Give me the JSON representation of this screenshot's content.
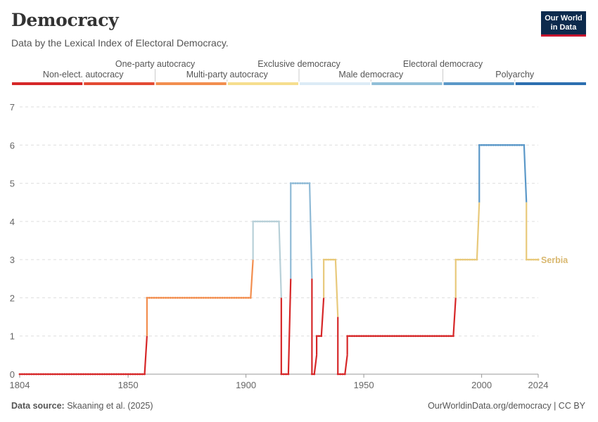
{
  "header": {
    "title": "Democracy",
    "subtitle": "Data by the Lexical Index of Electoral Democracy.",
    "logo_line1": "Our World",
    "logo_line2": "in Data"
  },
  "footer": {
    "source_label": "Data source:",
    "source_value": "Skaaning et al. (2025)",
    "url": "OurWorldinData.org/democracy | CC BY"
  },
  "legend": [
    {
      "label": "Non-elect. autocracy",
      "color": "#d62728"
    },
    {
      "label": "One-party autocracy",
      "color": "#e34a33"
    },
    {
      "label": "Multi-party autocracy",
      "color": "#f28e4f"
    },
    {
      "label": "Exclusive democracy",
      "color": "#f6de8e"
    },
    {
      "label": "Male democracy",
      "color": "#dcebf6"
    },
    {
      "label": "Electoral democracy",
      "color": "#91bfd8"
    },
    {
      "label": "Polyarchy",
      "color": "#5b98c8"
    },
    {
      "label": "",
      "color": "#2c6fb0"
    }
  ],
  "chart_data": {
    "type": "line",
    "title": "Democracy",
    "xlabel": "",
    "ylabel": "",
    "xlim": [
      1804,
      2024
    ],
    "ylim": [
      0,
      7
    ],
    "x_ticks": [
      1804,
      1850,
      1900,
      1950,
      2000,
      2024
    ],
    "y_ticks": [
      0,
      1,
      2,
      3,
      4,
      5,
      6,
      7
    ],
    "grid": "horizontal dashed",
    "series": [
      {
        "name": "Serbia",
        "color_label": "#d9b870",
        "step_points": [
          [
            1804,
            0
          ],
          [
            1857,
            0
          ],
          [
            1858,
            2
          ],
          [
            1902,
            2
          ],
          [
            1903,
            4
          ],
          [
            1914,
            4
          ],
          [
            1915,
            0
          ],
          [
            1918,
            0
          ],
          [
            1919,
            5
          ],
          [
            1927,
            5
          ],
          [
            1928,
            0
          ],
          [
            1929,
            0
          ],
          [
            1930,
            1
          ],
          [
            1932,
            1
          ],
          [
            1933,
            3
          ],
          [
            1938,
            3
          ],
          [
            1939,
            0
          ],
          [
            1942,
            0
          ],
          [
            1943,
            1
          ],
          [
            1988,
            1
          ],
          [
            1989,
            3
          ],
          [
            1998,
            3
          ],
          [
            1999,
            6
          ],
          [
            2018,
            6
          ],
          [
            2019,
            3
          ],
          [
            2024,
            3
          ]
        ]
      }
    ],
    "level_colors": [
      "#d62728",
      "#d62728",
      "#f28e4f",
      "#e8c97b",
      "#b8d0d8",
      "#8fbad6",
      "#5b98c8",
      "#2c6fb0"
    ]
  }
}
